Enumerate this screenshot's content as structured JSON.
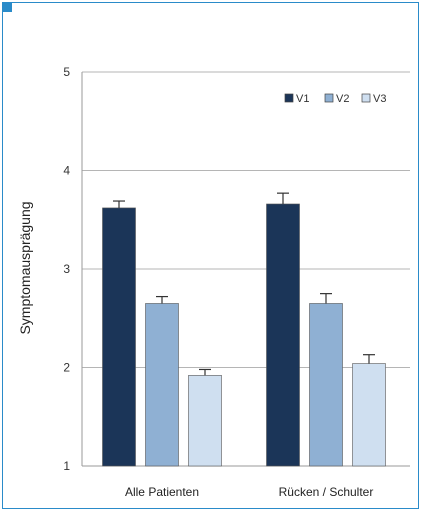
{
  "chart_data": {
    "type": "bar",
    "title": "",
    "xlabel": "",
    "ylabel": "Symptomausprägung",
    "ylim": [
      1,
      5
    ],
    "yticks": [
      "1",
      "2",
      "3",
      "4",
      "5"
    ],
    "grid": true,
    "legend_position": "top-right",
    "categories": [
      "Alle Patienten",
      "Rücken / Schulter"
    ],
    "series": [
      {
        "name": "V1",
        "values": [
          3.62,
          3.66
        ],
        "errors": [
          0.07,
          0.11
        ],
        "color": "#1b3558"
      },
      {
        "name": "V2",
        "values": [
          2.65,
          2.65
        ],
        "errors": [
          0.07,
          0.1
        ],
        "color": "#8fb0d3"
      },
      {
        "name": "V3",
        "values": [
          1.92,
          2.04
        ],
        "errors": [
          0.06,
          0.09
        ],
        "color": "#cfdff0"
      }
    ]
  }
}
